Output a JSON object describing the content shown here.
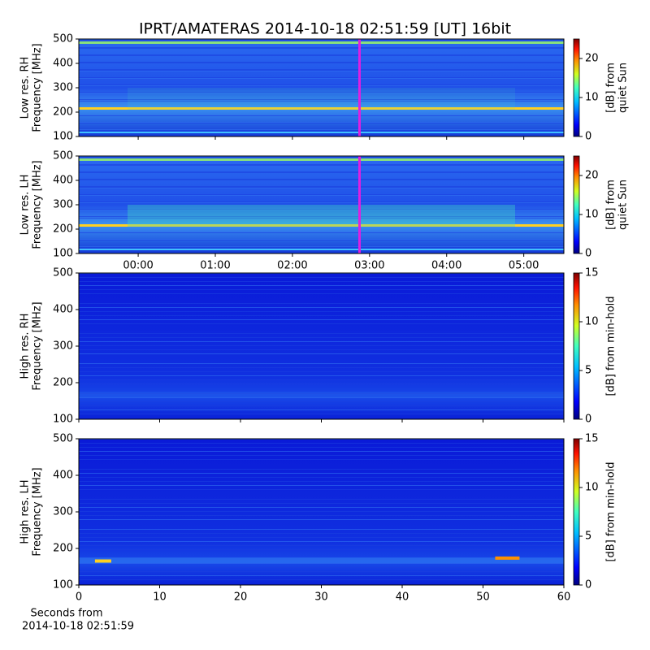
{
  "title": "IPRT/AMATERAS 2014-10-18 02:51:59 [UT]   16bit",
  "xlabel": [
    "Seconds from",
    "2014-10-18 02:51:59"
  ],
  "panels": [
    {
      "type": "spectrogram",
      "ylabel": [
        "Low res. RH",
        "Frequency [MHz]"
      ],
      "ylim": [
        100,
        500
      ],
      "yticks": [
        100,
        200,
        300,
        400,
        500
      ],
      "xlim": [
        -0.77,
        5.52
      ],
      "xticks": [
        {
          "value": 0,
          "label": "00:00"
        },
        {
          "value": 1,
          "label": "01:00"
        },
        {
          "value": 2,
          "label": "02:00"
        },
        {
          "value": 3,
          "label": "03:00"
        },
        {
          "value": 4,
          "label": "04:00"
        },
        {
          "value": 5,
          "label": "05:00"
        }
      ],
      "show_xtick_labels": false,
      "cursor_x": 2.87,
      "cursor_color": "#e020e0",
      "clabel": [
        "[dB] from",
        "quiet Sun"
      ],
      "clim": [
        0,
        25
      ],
      "cticks": [
        0,
        10,
        20
      ]
    },
    {
      "type": "spectrogram",
      "ylabel": [
        "Low res. LH",
        "Frequency [MHz]"
      ],
      "ylim": [
        100,
        500
      ],
      "yticks": [
        100,
        200,
        300,
        400,
        500
      ],
      "xlim": [
        -0.77,
        5.52
      ],
      "xticks": [
        {
          "value": 0,
          "label": "00:00"
        },
        {
          "value": 1,
          "label": "01:00"
        },
        {
          "value": 2,
          "label": "02:00"
        },
        {
          "value": 3,
          "label": "03:00"
        },
        {
          "value": 4,
          "label": "04:00"
        },
        {
          "value": 5,
          "label": "05:00"
        }
      ],
      "show_xtick_labels": true,
      "cursor_x": 2.87,
      "cursor_color": "#e020e0",
      "clabel": [
        "[dB] from",
        "quiet Sun"
      ],
      "clim": [
        0,
        25
      ],
      "cticks": [
        0,
        10,
        20
      ]
    },
    {
      "type": "spectrogram",
      "ylabel": [
        "High res. RH",
        "Frequency [MHz]"
      ],
      "ylim": [
        100,
        500
      ],
      "yticks": [
        100,
        200,
        300,
        400,
        500
      ],
      "xlim": [
        0,
        60
      ],
      "xticks": [
        0,
        10,
        20,
        30,
        40,
        50,
        60
      ],
      "show_xtick_labels": false,
      "clabel": [
        "[dB] from min-hold"
      ],
      "clim": [
        0,
        15
      ],
      "cticks": [
        0,
        5,
        10,
        15
      ]
    },
    {
      "type": "spectrogram",
      "ylabel": [
        "High res. LH",
        "Frequency [MHz]"
      ],
      "ylim": [
        100,
        500
      ],
      "yticks": [
        100,
        200,
        300,
        400,
        500
      ],
      "xlim": [
        0,
        60
      ],
      "xticks": [
        0,
        10,
        20,
        30,
        40,
        50,
        60
      ],
      "show_xtick_labels": true,
      "clabel": [
        "[dB] from min-hold"
      ],
      "clim": [
        0,
        15
      ],
      "cticks": [
        0,
        5,
        10,
        15
      ]
    }
  ]
}
